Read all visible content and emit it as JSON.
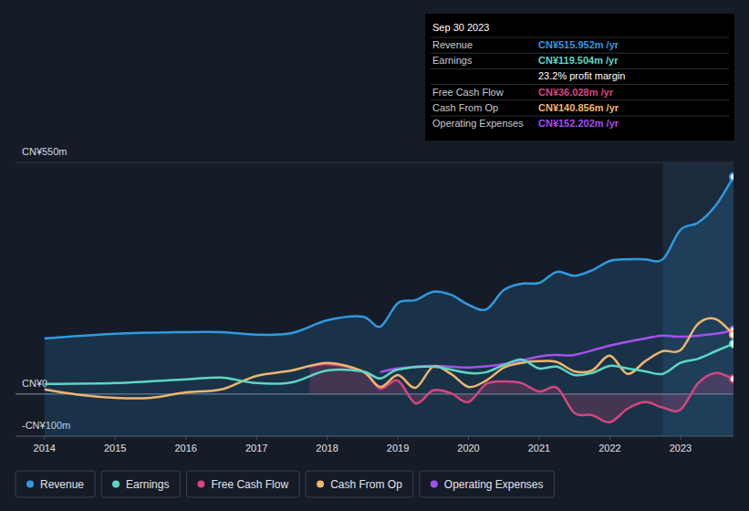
{
  "chart_data": {
    "type": "line",
    "xlim": [
      2013.59,
      2023.75
    ],
    "xticks": [
      2014,
      2015,
      2016,
      2017,
      2018,
      2019,
      2020,
      2021,
      2022,
      2023
    ],
    "ylim": [
      -100,
      550
    ],
    "yticks": [
      {
        "value": 550,
        "label": "CN¥550m"
      },
      {
        "value": 0,
        "label": "CN¥0"
      },
      {
        "value": -100,
        "label": "-CN¥100m"
      }
    ],
    "grid": true,
    "legend": "bottom",
    "series": [
      {
        "name": "Revenue",
        "color": "#2f9ae0",
        "type": "area",
        "x": [
          2014,
          2015,
          2016,
          2016.5,
          2017,
          2017.5,
          2018,
          2018.5,
          2018.75,
          2019,
          2019.25,
          2019.5,
          2019.75,
          2020,
          2020.25,
          2020.5,
          2020.75,
          2021,
          2021.25,
          2021.5,
          2021.75,
          2022,
          2022.25,
          2022.5,
          2022.75,
          2023,
          2023.25,
          2023.5,
          2023.75
        ],
        "values": [
          132,
          143,
          147,
          147,
          141,
          145,
          175,
          184,
          160,
          216,
          223,
          243,
          236,
          212,
          201,
          247,
          262,
          264,
          290,
          281,
          294,
          316,
          320,
          320,
          320,
          390,
          407,
          448,
          515.952
        ]
      },
      {
        "name": "Earnings",
        "color": "#5cd6c4",
        "type": "line",
        "x": [
          2014,
          2015,
          2016,
          2016.5,
          2017,
          2017.5,
          2018,
          2018.5,
          2018.75,
          2019,
          2019.5,
          2020,
          2020.25,
          2020.5,
          2020.75,
          2021,
          2021.25,
          2021.5,
          2021.75,
          2022,
          2022.25,
          2022.5,
          2022.75,
          2023,
          2023.25,
          2023.5,
          2023.75
        ],
        "values": [
          24,
          26,
          35,
          39,
          26,
          28,
          56,
          54,
          37,
          58,
          65,
          50,
          52,
          69,
          82,
          61,
          65,
          45,
          50,
          67,
          61,
          54,
          48,
          74,
          84,
          102,
          119.504
        ]
      },
      {
        "name": "Free Cash Flow",
        "color": "#d6457f",
        "type": "area",
        "x": [
          2017.75,
          2018,
          2018.5,
          2018.75,
          2019,
          2019.25,
          2019.5,
          2019.75,
          2020,
          2020.25,
          2020.5,
          2020.75,
          2021,
          2021.25,
          2021.5,
          2021.75,
          2022,
          2022.25,
          2022.5,
          2022.75,
          2023,
          2023.25,
          2023.5,
          2023.75
        ],
        "values": [
          65,
          71,
          54,
          13,
          32,
          -22,
          9,
          2,
          -19,
          24,
          30,
          26,
          6,
          15,
          -45,
          -50,
          -67,
          -35,
          -19,
          -32,
          -37,
          26,
          50,
          36.028
        ]
      },
      {
        "name": "Cash From Op",
        "color": "#eeb56c",
        "type": "line",
        "x": [
          2014,
          2014.5,
          2015,
          2015.5,
          2016,
          2016.5,
          2017,
          2017.5,
          2018,
          2018.5,
          2018.75,
          2019,
          2019.25,
          2019.5,
          2019.75,
          2020,
          2020.25,
          2020.5,
          2020.75,
          2021,
          2021.25,
          2021.5,
          2021.75,
          2022,
          2022.25,
          2022.5,
          2022.75,
          2023,
          2023.25,
          2023.5,
          2023.75
        ],
        "values": [
          11,
          -2,
          -9,
          -9,
          4,
          11,
          43,
          56,
          74,
          54,
          17,
          45,
          15,
          65,
          48,
          17,
          32,
          63,
          74,
          78,
          76,
          54,
          56,
          91,
          48,
          78,
          102,
          104,
          167,
          178,
          140.856
        ]
      },
      {
        "name": "Operating Expenses",
        "color": "#a64ff0",
        "type": "line",
        "x": [
          2018.75,
          2019,
          2019.5,
          2020,
          2020.5,
          2021,
          2021.25,
          2021.5,
          2022,
          2022.5,
          2022.75,
          2023,
          2023.5,
          2023.75
        ],
        "values": [
          52,
          61,
          67,
          63,
          71,
          89,
          93,
          93,
          115,
          132,
          139,
          136,
          143,
          152.202
        ]
      }
    ],
    "annotation": {
      "title": "Sep 30 2023",
      "rows": [
        {
          "label": "Revenue",
          "value": "CN¥515.952m /yr"
        },
        {
          "label": "Earnings",
          "value": "CN¥119.504m /yr"
        },
        {
          "value": "23.2% profit margin"
        },
        {
          "label": "Free Cash Flow",
          "value": "CN¥36.028m /yr"
        },
        {
          "label": "Cash From Op",
          "value": "CN¥140.856m /yr"
        },
        {
          "label": "Operating Expenses",
          "value": "CN¥152.202m /yr"
        }
      ]
    }
  }
}
